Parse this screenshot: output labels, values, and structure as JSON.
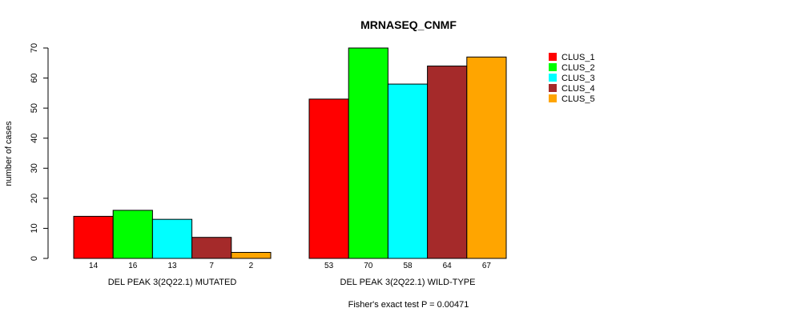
{
  "chart_data": {
    "type": "bar",
    "title": "MRNASEQ_CNMF",
    "ylabel": "number of cases",
    "xlabel": "",
    "ylim": [
      0,
      70
    ],
    "yticks": [
      0,
      10,
      20,
      30,
      40,
      50,
      60,
      70
    ],
    "groups": [
      {
        "label": "DEL PEAK  3(2Q22.1) MUTATED",
        "values": [
          14,
          16,
          13,
          7,
          2
        ]
      },
      {
        "label": "DEL PEAK  3(2Q22.1) WILD-TYPE",
        "values": [
          53,
          70,
          58,
          64,
          67
        ]
      }
    ],
    "series": [
      {
        "name": "CLUS_1",
        "color": "#ff0000"
      },
      {
        "name": "CLUS_2",
        "color": "#00ff00"
      },
      {
        "name": "CLUS_3",
        "color": "#00ffff"
      },
      {
        "name": "CLUS_4",
        "color": "#a52a2a"
      },
      {
        "name": "CLUS_5",
        "color": "#ffa500"
      }
    ],
    "legend_position": "top-right",
    "grid": false,
    "footnote": "Fisher's exact test P = 0.00471"
  }
}
